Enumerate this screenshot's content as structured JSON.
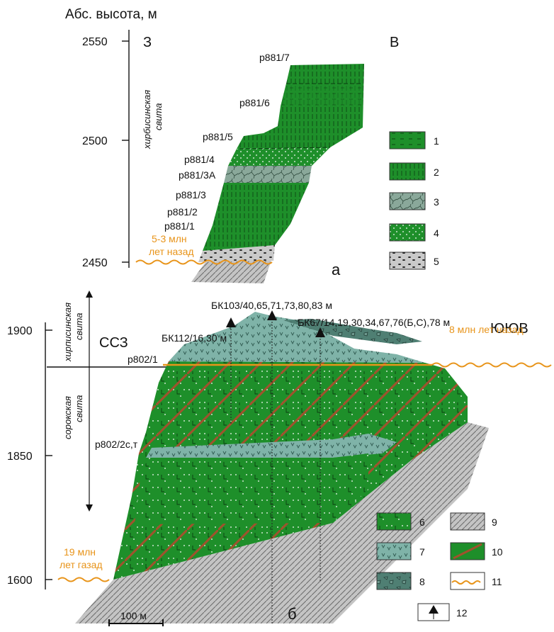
{
  "axis_title": "Абс. высота, м",
  "panel_a": {
    "letter": "а",
    "dir_west": "З",
    "dir_east": "В",
    "ticks": [
      "2550",
      "2500",
      "2450"
    ],
    "suite": [
      "хирбисинская",
      "свита"
    ],
    "age": [
      "5-3 млн",
      "лет назад"
    ],
    "samples": [
      "р881/7",
      "р881/6",
      "р881/5",
      "р881/4",
      "р881/3А",
      "р881/3",
      "р881/2",
      "р881/1"
    ]
  },
  "panel_b": {
    "letter": "б",
    "dir_west": "ССЗ",
    "dir_east": "ЮЮВ",
    "ticks": [
      "1900",
      "1850",
      "1600"
    ],
    "suite_upper": [
      "хирписинская",
      "свита"
    ],
    "suite_lower": [
      "сорокская",
      "свита"
    ],
    "age_upper": "8 млн лет назад",
    "age_lower": [
      "19 млн",
      "лет газад"
    ],
    "samples": [
      "р802/1",
      "р802/2с,т"
    ],
    "boreholes": [
      "БК103/40,65,71,73,80,83 м",
      "БК112/16,30 м",
      "БК67/14,19,30,34,67,76(Б,С),78 м"
    ],
    "scale": "100 м"
  },
  "legend": [
    {
      "n": "1"
    },
    {
      "n": "2"
    },
    {
      "n": "3"
    },
    {
      "n": "4"
    },
    {
      "n": "5"
    },
    {
      "n": "6"
    },
    {
      "n": "7"
    },
    {
      "n": "8"
    },
    {
      "n": "9"
    },
    {
      "n": "10"
    },
    {
      "n": "11"
    },
    {
      "n": "12"
    }
  ],
  "colors": {
    "green": "#1e8f2a",
    "teal": "#7fb3a8",
    "dark_teal": "#4f7f73",
    "orange": "#e8941a",
    "red_brown": "#a0522d",
    "gray": "#b8b8b8"
  }
}
